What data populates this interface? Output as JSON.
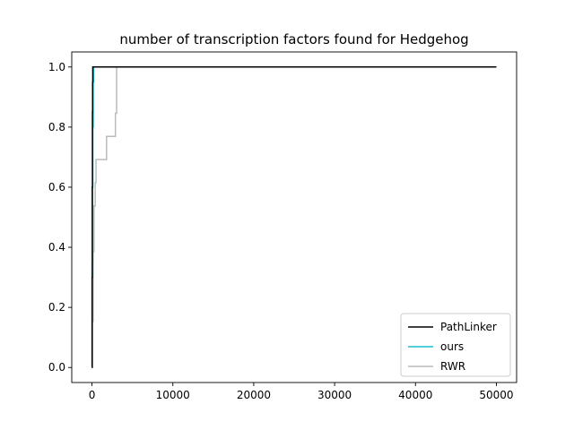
{
  "chart_data": {
    "type": "line",
    "title": "number of transcription factors found for Hedgehog",
    "xlabel": "",
    "ylabel": "",
    "xlim": [
      -2500,
      52500
    ],
    "ylim": [
      -0.05,
      1.05
    ],
    "x_ticks": [
      0,
      10000,
      20000,
      30000,
      40000,
      50000
    ],
    "x_tick_labels": [
      "0",
      "10000",
      "20000",
      "30000",
      "40000",
      "50000"
    ],
    "y_ticks": [
      0.0,
      0.2,
      0.4,
      0.6,
      0.8,
      1.0
    ],
    "y_tick_labels": [
      "0.0",
      "0.2",
      "0.4",
      "0.6",
      "0.8",
      "1.0"
    ],
    "grid": false,
    "legend_position": "lower-right",
    "series": [
      {
        "name": "PathLinker",
        "color": "#000000",
        "step": true,
        "points": [
          [
            0,
            0.0
          ],
          [
            20,
            0.3
          ],
          [
            40,
            0.6
          ],
          [
            60,
            0.85
          ],
          [
            80,
            0.95
          ],
          [
            100,
            1.0
          ],
          [
            50000,
            1.0
          ]
        ]
      },
      {
        "name": "ours",
        "color": "#17becf",
        "step": true,
        "points": [
          [
            0,
            0.0
          ],
          [
            30,
            0.35
          ],
          [
            60,
            0.6
          ],
          [
            100,
            0.8
          ],
          [
            150,
            0.95
          ],
          [
            200,
            1.0
          ],
          [
            50000,
            1.0
          ]
        ]
      },
      {
        "name": "RWR",
        "color": "#bbbbbb",
        "step": true,
        "points": [
          [
            0,
            0.0
          ],
          [
            50,
            0.154
          ],
          [
            150,
            0.385
          ],
          [
            250,
            0.538
          ],
          [
            400,
            0.615
          ],
          [
            500,
            0.692
          ],
          [
            1800,
            0.769
          ],
          [
            2900,
            0.846
          ],
          [
            3050,
            1.0
          ],
          [
            50000,
            1.0
          ]
        ]
      }
    ]
  }
}
